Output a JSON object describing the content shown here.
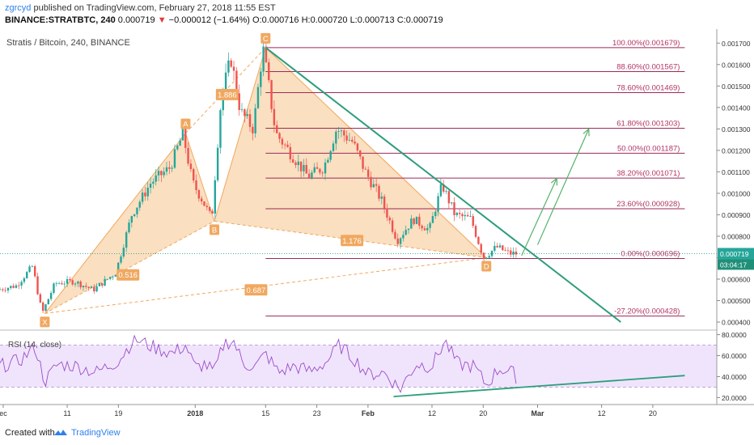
{
  "header": {
    "author": "zgrcyd",
    "published": "published on TradingView.com, February 27, 2018 11:55 EST",
    "ticker": "BINANCE:STRATBTC, 240",
    "last": "0.000719",
    "change": "−0.000012 (−1.64%)",
    "open": "O:0.000716",
    "high": "H:0.000720",
    "low": "L:0.000713",
    "close": "C:0.000719"
  },
  "footer": {
    "created": "Created with",
    "brand": "TradingView"
  },
  "colors": {
    "up": "#26a69a",
    "down": "#ef5350",
    "fill": "#f6c48c",
    "fib": "#9c2a5a",
    "trend": "#2e9e7c",
    "rsi": "#9b4dca",
    "rsiband": "#e9d8fb",
    "fibtext": "#b2335f"
  },
  "chart_data": [
    {
      "type": "candlestick",
      "title": "Stratis / Bitcoin, 240, BINANCE",
      "y_ticks": [
        "0.001700",
        "0.001600",
        "0.001500",
        "0.001400",
        "0.001300",
        "0.001200",
        "0.001100",
        "0.001000",
        "0.000900",
        "0.000800",
        "0.000700",
        "0.000600",
        "0.000500",
        "0.000400"
      ],
      "ylim": [
        0.00037,
        0.00175
      ],
      "x_ticks": [
        "ec",
        "11",
        "19",
        "2018",
        "15",
        "23",
        "Feb",
        "12",
        "20",
        "Mar",
        "12",
        "20"
      ],
      "last_price_label": "0.000719",
      "countdown_label": "03:04:17",
      "price_path": [
        {
          "x": 0.0,
          "y": 0.00055
        },
        {
          "x": 3.0,
          "y": 0.00057
        },
        {
          "x": 5.5,
          "y": 0.00066
        },
        {
          "x": 7.0,
          "y": 0.00044
        },
        {
          "x": 9.0,
          "y": 0.00058
        },
        {
          "x": 12.0,
          "y": 0.00059
        },
        {
          "x": 15.0,
          "y": 0.00055
        },
        {
          "x": 18.5,
          "y": 0.00063
        },
        {
          "x": 21.0,
          "y": 0.0009
        },
        {
          "x": 24.0,
          "y": 0.00105
        },
        {
          "x": 27.0,
          "y": 0.00112
        },
        {
          "x": 29.0,
          "y": 0.00128
        },
        {
          "x": 30.5,
          "y": 0.00105
        },
        {
          "x": 32.0,
          "y": 0.00097
        },
        {
          "x": 33.5,
          "y": 0.00088
        },
        {
          "x": 35.0,
          "y": 0.00145
        },
        {
          "x": 36.5,
          "y": 0.00163
        },
        {
          "x": 38.0,
          "y": 0.00138
        },
        {
          "x": 40.0,
          "y": 0.0013
        },
        {
          "x": 41.5,
          "y": 0.00168
        },
        {
          "x": 43.5,
          "y": 0.00128
        },
        {
          "x": 46.0,
          "y": 0.00118
        },
        {
          "x": 48.5,
          "y": 0.00108
        },
        {
          "x": 51.0,
          "y": 0.00112
        },
        {
          "x": 53.0,
          "y": 0.0013
        },
        {
          "x": 55.5,
          "y": 0.00124
        },
        {
          "x": 57.5,
          "y": 0.0011
        },
        {
          "x": 60.0,
          "y": 0.00097
        },
        {
          "x": 62.5,
          "y": 0.00078
        },
        {
          "x": 65.0,
          "y": 0.00088
        },
        {
          "x": 67.5,
          "y": 0.00083
        },
        {
          "x": 69.5,
          "y": 0.00104
        },
        {
          "x": 71.5,
          "y": 0.0009
        },
        {
          "x": 74.0,
          "y": 0.00088
        },
        {
          "x": 76.0,
          "y": 0.0007
        },
        {
          "x": 78.0,
          "y": 0.00075
        },
        {
          "x": 80.0,
          "y": 0.00072
        },
        {
          "x": 81.0,
          "y": 0.000719
        }
      ],
      "harmonic_pattern": {
        "points": [
          {
            "label": "X",
            "x": 7.0,
            "y": 0.00044
          },
          {
            "label": "A",
            "x": 29.0,
            "y": 0.00128
          },
          {
            "label": "B",
            "x": 33.5,
            "y": 0.00087
          },
          {
            "label": "C",
            "x": 41.5,
            "y": 0.001679
          },
          {
            "label": "D",
            "x": 76.0,
            "y": 0.0007
          }
        ],
        "ratios": [
          {
            "label": "0.516",
            "x": 20.0,
            "y": 0.00062
          },
          {
            "label": "1.886",
            "x": 35.5,
            "y": 0.00146
          },
          {
            "label": "1.176",
            "x": 55.0,
            "y": 0.00078
          },
          {
            "label": "0.687",
            "x": 40.0,
            "y": 0.00055
          }
        ]
      },
      "fibonacci_levels": [
        {
          "label": "100.00%(0.001679)",
          "value": 0.001679
        },
        {
          "label": "88.60%(0.001567)",
          "value": 0.001567
        },
        {
          "label": "78.60%(0.001469)",
          "value": 0.001469
        },
        {
          "label": "61.80%(0.001303)",
          "value": 0.001303
        },
        {
          "label": "50.00%(0.001187)",
          "value": 0.001187
        },
        {
          "label": "38.20%(0.001071)",
          "value": 0.001071
        },
        {
          "label": "23.60%(0.000928)",
          "value": 0.000928
        },
        {
          "label": "0.00%(0.000696)",
          "value": 0.000696
        },
        {
          "label": "-27.20%(0.000428)",
          "value": 0.000428
        }
      ],
      "fib_x_range": [
        41.5,
        107.0
      ],
      "trendline": [
        {
          "x": 41.5,
          "y": 0.001679
        },
        {
          "x": 97.0,
          "y": 0.0004
        }
      ],
      "projection_arrows": [
        [
          {
            "x": 81.5,
            "y": 0.00071
          },
          {
            "x": 87.0,
            "y": 0.00107
          }
        ],
        [
          {
            "x": 84.0,
            "y": 0.00076
          },
          {
            "x": 92.0,
            "y": 0.0013
          }
        ]
      ]
    },
    {
      "type": "line",
      "title": "RSI (14, close)",
      "y_ticks": [
        "80.0000",
        "60.0000",
        "40.0000",
        "20.0000"
      ],
      "ylim": [
        18,
        82
      ],
      "band": [
        30,
        70
      ],
      "trendline": [
        {
          "x": 61.5,
          "y": 21
        },
        {
          "x": 107.0,
          "y": 41
        }
      ],
      "rsi_path": [
        {
          "x": 0,
          "y": 50
        },
        {
          "x": 3,
          "y": 55
        },
        {
          "x": 5.5,
          "y": 68
        },
        {
          "x": 7,
          "y": 35
        },
        {
          "x": 9,
          "y": 52
        },
        {
          "x": 12,
          "y": 50
        },
        {
          "x": 15,
          "y": 44
        },
        {
          "x": 18.5,
          "y": 55
        },
        {
          "x": 21,
          "y": 76
        },
        {
          "x": 24,
          "y": 68
        },
        {
          "x": 27,
          "y": 62
        },
        {
          "x": 29,
          "y": 70
        },
        {
          "x": 30.5,
          "y": 48
        },
        {
          "x": 32,
          "y": 52
        },
        {
          "x": 33.5,
          "y": 44
        },
        {
          "x": 35,
          "y": 72
        },
        {
          "x": 36.5,
          "y": 74
        },
        {
          "x": 38,
          "y": 52
        },
        {
          "x": 40,
          "y": 50
        },
        {
          "x": 41.5,
          "y": 62
        },
        {
          "x": 43.5,
          "y": 44
        },
        {
          "x": 46,
          "y": 50
        },
        {
          "x": 48.5,
          "y": 45
        },
        {
          "x": 51,
          "y": 54
        },
        {
          "x": 53,
          "y": 70
        },
        {
          "x": 55.5,
          "y": 56
        },
        {
          "x": 57.5,
          "y": 42
        },
        {
          "x": 60,
          "y": 44
        },
        {
          "x": 62.5,
          "y": 28
        },
        {
          "x": 65,
          "y": 52
        },
        {
          "x": 67.5,
          "y": 50
        },
        {
          "x": 69.5,
          "y": 74
        },
        {
          "x": 71.5,
          "y": 52
        },
        {
          "x": 74,
          "y": 50
        },
        {
          "x": 76,
          "y": 32
        },
        {
          "x": 78,
          "y": 48
        },
        {
          "x": 80,
          "y": 44
        },
        {
          "x": 81,
          "y": 38
        }
      ]
    }
  ]
}
